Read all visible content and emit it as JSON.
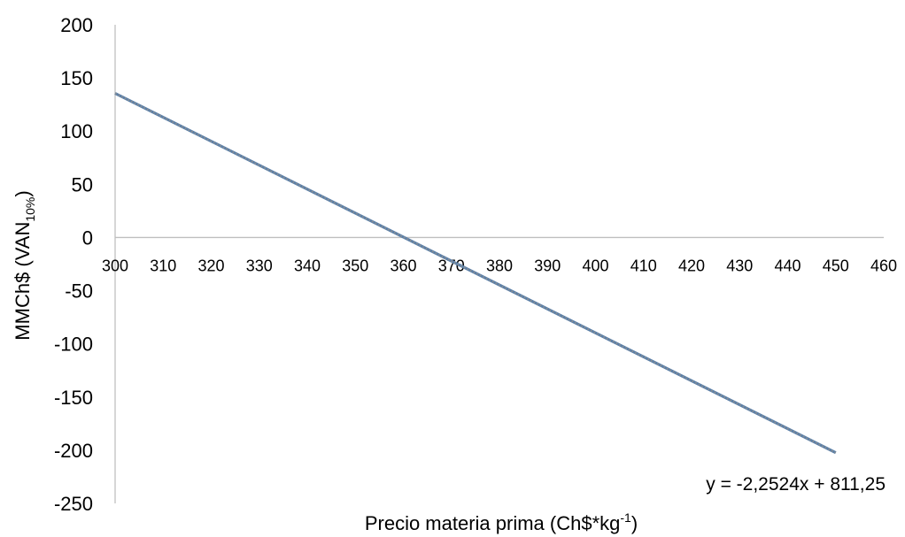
{
  "chart_data": {
    "type": "line",
    "xlabel": "Precio materia prima (Ch$*kg",
    "xlabel_sup": "-1",
    "xlabel_end": ")",
    "ylabel": "MMCh$ (VAN",
    "ylabel_sub": "10%",
    "ylabel_end": ")",
    "xlim": [
      300,
      460
    ],
    "ylim": [
      -250,
      200
    ],
    "x_ticks": [
      300,
      310,
      320,
      330,
      340,
      350,
      360,
      370,
      380,
      390,
      400,
      410,
      420,
      430,
      440,
      450,
      460
    ],
    "y_ticks": [
      200,
      150,
      100,
      50,
      0,
      -50,
      -100,
      -150,
      -200,
      -250
    ],
    "grid": false,
    "series": [
      {
        "x": [
          300,
          450
        ],
        "y": [
          135.53,
          -202.33
        ],
        "color": "#5a7fa8"
      }
    ],
    "trendline_color": "#8a8f94",
    "annotation": "y = -2,2524x + 811,25"
  }
}
